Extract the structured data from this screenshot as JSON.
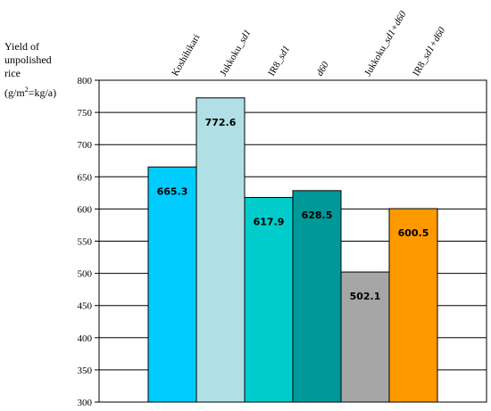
{
  "chart_data": {
    "type": "bar",
    "ylabel_lines": [
      "Yield of",
      "unpolished",
      "rice"
    ],
    "ylabel_unit_parts": [
      "(g/m",
      "2",
      "=kg/a)"
    ],
    "categories": [
      {
        "parts": [
          {
            "text": "Koshihikari",
            "italic": false
          }
        ]
      },
      {
        "parts": [
          {
            "text": "Jukkoku_",
            "italic": false
          },
          {
            "text": "sd1",
            "italic": true
          }
        ]
      },
      {
        "parts": [
          {
            "text": "IR8_",
            "italic": false
          },
          {
            "text": "sd1",
            "italic": true
          }
        ]
      },
      {
        "parts": [
          {
            "text": "d60",
            "italic": true
          }
        ]
      },
      {
        "parts": [
          {
            "text": "Jukkoku_",
            "italic": false
          },
          {
            "text": "sd1+d60",
            "italic": true
          }
        ]
      },
      {
        "parts": [
          {
            "text": "IR8_",
            "italic": false
          },
          {
            "text": "sd1+d60",
            "italic": true
          }
        ]
      }
    ],
    "values": [
      665.3,
      772.6,
      617.9,
      628.5,
      502.1,
      600.5
    ],
    "value_labels": [
      "665.3",
      "772.6",
      "617.9",
      "628.5",
      "502.1",
      "600.5"
    ],
    "colors": [
      "#00ccff",
      "#b0e0e6",
      "#00cccc",
      "#009999",
      "#a6a6a6",
      "#ff9900"
    ],
    "ylim": [
      300,
      800
    ],
    "yticks": [
      300,
      350,
      400,
      450,
      500,
      550,
      600,
      650,
      700,
      750,
      800
    ],
    "grid": true
  }
}
